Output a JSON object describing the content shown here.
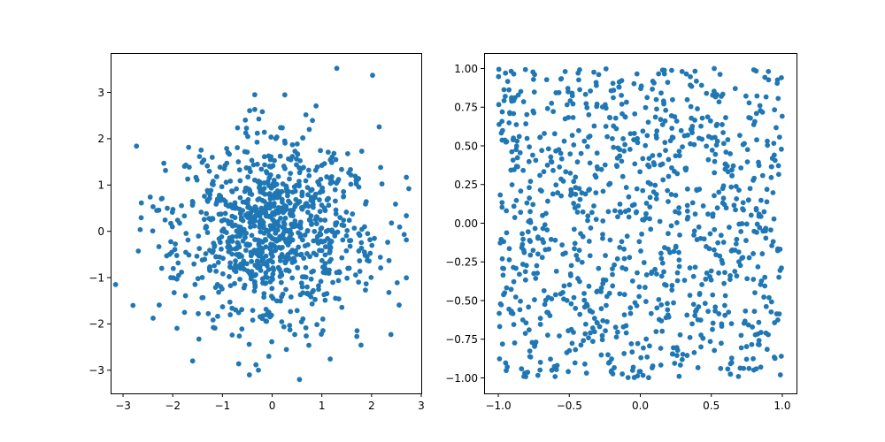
{
  "figure": {
    "background": "#ffffff"
  },
  "chart_data": [
    {
      "type": "scatter",
      "distribution": "normal",
      "point_count": 1000,
      "marker": "filled circle",
      "color": "#1f77b4",
      "xlim": [
        -3.25,
        3.0
      ],
      "ylim": [
        -3.5,
        3.85
      ],
      "xticks": [
        -3,
        -2,
        -1,
        0,
        1,
        2,
        3
      ],
      "xtick_labels": [
        "−3",
        "−2",
        "−1",
        "0",
        "1",
        "2",
        "3"
      ],
      "yticks": [
        -3,
        -2,
        -1,
        0,
        1,
        2,
        3
      ],
      "ytick_labels": [
        "−3",
        "−2",
        "−1",
        "0",
        "1",
        "2",
        "3"
      ],
      "grid": false,
      "legend": "none",
      "notable_points": [
        [
          1.3,
          3.52
        ],
        [
          2.02,
          3.37
        ],
        [
          -3.15,
          -1.15
        ],
        [
          0.55,
          -3.2
        ],
        [
          2.75,
          0.92
        ],
        [
          -0.35,
          2.95
        ],
        [
          -2.8,
          -1.6
        ],
        [
          -1.6,
          -2.8
        ]
      ]
    },
    {
      "type": "scatter",
      "distribution": "uniform",
      "point_count": 1000,
      "marker": "filled circle",
      "color": "#1f77b4",
      "xlim": [
        -1.1,
        1.1
      ],
      "ylim": [
        -1.1,
        1.1
      ],
      "xticks": [
        -1.0,
        -0.5,
        0.0,
        0.5,
        1.0
      ],
      "xtick_labels": [
        "−1.0",
        "−0.5",
        "0.0",
        "0.5",
        "1.0"
      ],
      "yticks": [
        -1.0,
        -0.75,
        -0.5,
        -0.25,
        0.0,
        0.25,
        0.5,
        0.75,
        1.0
      ],
      "ytick_labels": [
        "−1.00",
        "−0.75",
        "−0.50",
        "−0.25",
        "0.00",
        "0.25",
        "0.50",
        "0.75",
        "1.00"
      ],
      "grid": false,
      "legend": "none"
    }
  ]
}
